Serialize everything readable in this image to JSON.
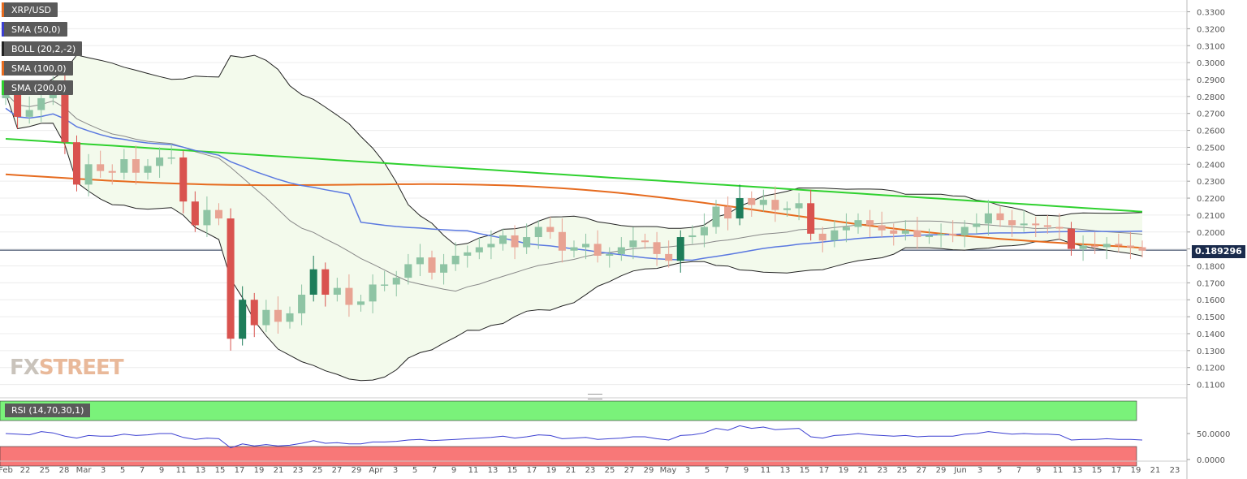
{
  "chart_data": {
    "type": "candlestick",
    "symbol": "XRP/USD",
    "last_price_label": "0.189296",
    "last_price": 0.189296,
    "indicators": [
      {
        "name": "SMA (50,0)",
        "color": "#3b3fd1"
      },
      {
        "name": "BOLL (20,2,-2)",
        "color": "#222222"
      },
      {
        "name": "SMA (100,0)",
        "color": "#e66b1f"
      },
      {
        "name": "SMA (200,0)",
        "color": "#2fd12f"
      }
    ],
    "rsi_label": "RSI (14,70,30,1)",
    "price_axis": {
      "min": 0.105,
      "max": 0.336,
      "ticks": [
        "0.3300",
        "0.3200",
        "0.3100",
        "0.3000",
        "0.2900",
        "0.2800",
        "0.2700",
        "0.2600",
        "0.2500",
        "0.2400",
        "0.2300",
        "0.2200",
        "0.2100",
        "0.2000",
        "0.1900",
        "0.1800",
        "0.1700",
        "0.1600",
        "0.1500",
        "0.1400",
        "0.1300",
        "0.1200",
        "0.1100"
      ]
    },
    "rsi_axis": {
      "ticks": [
        "50.0000",
        "0.0000"
      ],
      "upper_band": 70,
      "lower_band": 30
    },
    "x_axis": {
      "labels": [
        "Feb",
        "22",
        "25",
        "28",
        "Mar",
        "3",
        "5",
        "7",
        "9",
        "11",
        "13",
        "15",
        "17",
        "19",
        "21",
        "23",
        "25",
        "27",
        "29",
        "Apr",
        "3",
        "5",
        "7",
        "9",
        "11",
        "13",
        "15",
        "17",
        "19",
        "21",
        "23",
        "25",
        "27",
        "29",
        "May",
        "3",
        "5",
        "7",
        "9",
        "11",
        "13",
        "15",
        "17",
        "19",
        "21",
        "23",
        "25",
        "27",
        "29",
        "Jun",
        "3",
        "5",
        "7",
        "9",
        "11",
        "13",
        "15",
        "17",
        "19",
        "21",
        "23"
      ]
    },
    "colors": {
      "bull": "#8ec4a4",
      "bull_strong": "#1e7d5a",
      "bear": "#e8a393",
      "bear_strong": "#d9534f"
    },
    "closes": [
      0.282,
      0.268,
      0.272,
      0.279,
      0.286,
      0.253,
      0.228,
      0.24,
      0.236,
      0.235,
      0.243,
      0.235,
      0.239,
      0.244,
      0.244,
      0.218,
      0.204,
      0.213,
      0.208,
      0.137,
      0.16,
      0.145,
      0.154,
      0.147,
      0.152,
      0.163,
      0.178,
      0.163,
      0.167,
      0.157,
      0.159,
      0.169,
      0.169,
      0.173,
      0.181,
      0.185,
      0.176,
      0.181,
      0.186,
      0.188,
      0.191,
      0.193,
      0.198,
      0.191,
      0.197,
      0.203,
      0.2,
      0.189,
      0.191,
      0.193,
      0.186,
      0.187,
      0.191,
      0.195,
      0.194,
      0.187,
      0.183,
      0.197,
      0.198,
      0.203,
      0.215,
      0.208,
      0.22,
      0.216,
      0.219,
      0.213,
      0.214,
      0.217,
      0.199,
      0.195,
      0.201,
      0.203,
      0.207,
      0.204,
      0.201,
      0.199,
      0.201,
      0.197,
      0.198,
      0.199,
      0.198,
      0.203,
      0.205,
      0.211,
      0.207,
      0.204,
      0.205,
      0.204,
      0.203,
      0.202,
      0.19,
      0.192,
      0.191,
      0.193,
      0.192,
      0.191,
      0.189
    ],
    "rsi_values": [
      50,
      49,
      48,
      53,
      51,
      46,
      43,
      47,
      46,
      46,
      49,
      47,
      48,
      50,
      50,
      44,
      41,
      43,
      42,
      28,
      34,
      31,
      33,
      31,
      32,
      35,
      39,
      35,
      36,
      34,
      34,
      37,
      37,
      38,
      40,
      41,
      39,
      40,
      41,
      42,
      43,
      44,
      46,
      43,
      45,
      48,
      47,
      42,
      43,
      44,
      41,
      42,
      43,
      45,
      45,
      42,
      40,
      47,
      48,
      51,
      58,
      55,
      62,
      58,
      60,
      56,
      57,
      58,
      45,
      43,
      47,
      48,
      50,
      48,
      47,
      46,
      47,
      45,
      46,
      46,
      46,
      49,
      50,
      53,
      51,
      49,
      50,
      49,
      49,
      48,
      40,
      41,
      41,
      42,
      41,
      41,
      40
    ]
  }
}
